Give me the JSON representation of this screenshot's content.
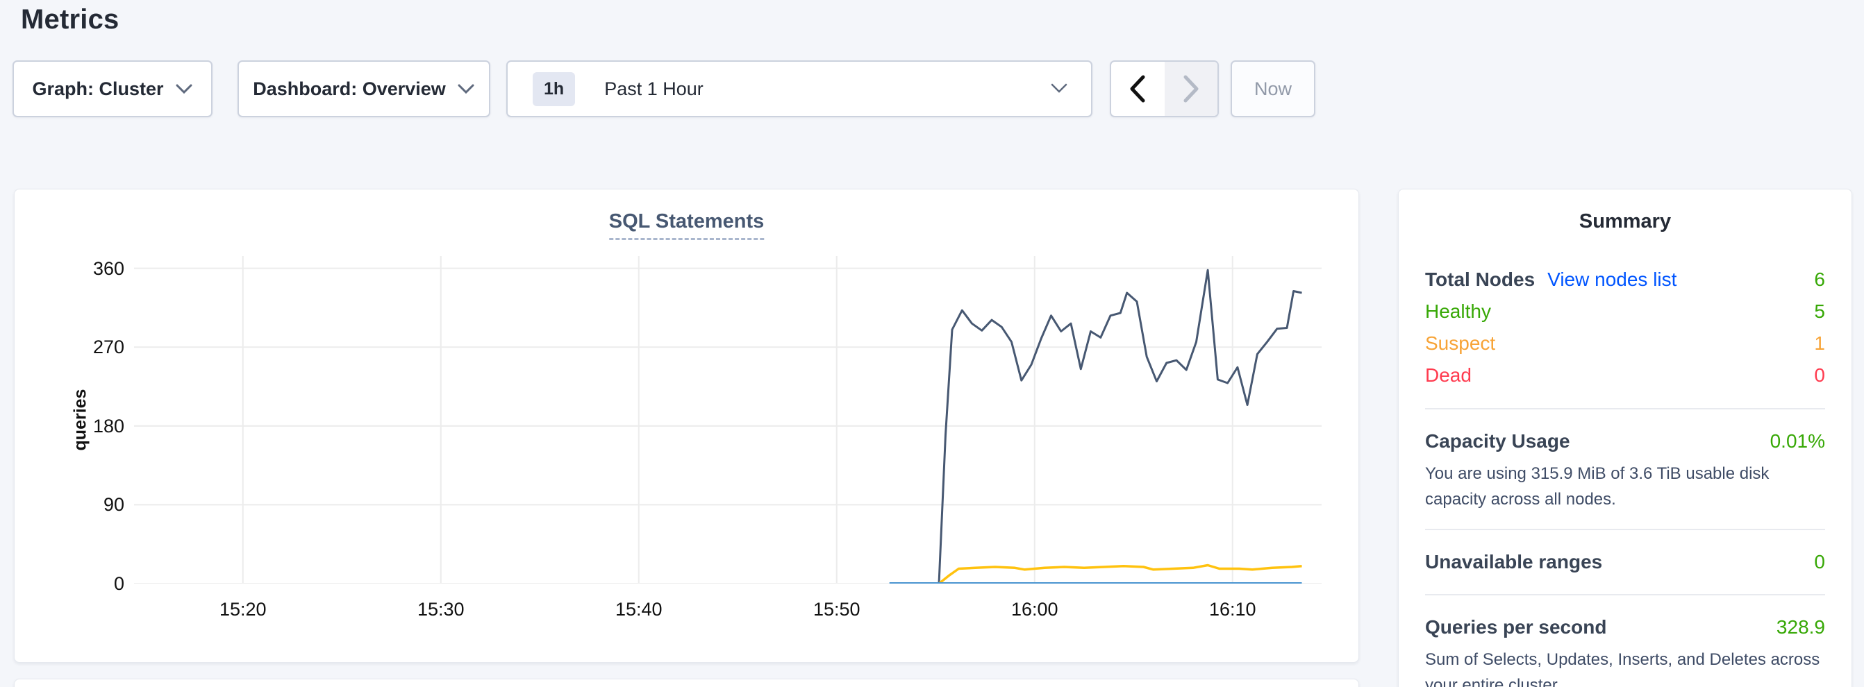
{
  "page": {
    "title": "Metrics"
  },
  "toolbar": {
    "graph_dropdown": "Graph: Cluster",
    "dashboard_dropdown": "Dashboard: Overview",
    "time_badge": "1h",
    "time_label": "Past 1 Hour",
    "now_label": "Now"
  },
  "chart_data": {
    "type": "line",
    "title": "SQL Statements",
    "ylabel": "queries",
    "x_range": [
      "15:14:30",
      "16:14:30"
    ],
    "x_ticks": [
      "15:20",
      "15:30",
      "15:40",
      "15:50",
      "16:00",
      "16:10"
    ],
    "y_ticks": [
      0,
      90,
      180,
      270,
      360
    ],
    "ylim": [
      0,
      374
    ],
    "grid": "on",
    "legend": "none",
    "series": [
      {
        "name": "dark-navy-line",
        "color": "#475872",
        "stroke_width": 3,
        "points": [
          [
            "15:55:10",
            0
          ],
          [
            "15:55:30",
            170
          ],
          [
            "15:55:50",
            290
          ],
          [
            "15:56:20",
            312
          ],
          [
            "15:56:50",
            297
          ],
          [
            "15:57:20",
            289
          ],
          [
            "15:57:50",
            301
          ],
          [
            "15:58:20",
            293
          ],
          [
            "15:58:50",
            276
          ],
          [
            "15:59:20",
            232
          ],
          [
            "15:59:50",
            250
          ],
          [
            "16:00:20",
            280
          ],
          [
            "16:00:50",
            306
          ],
          [
            "16:01:20",
            288
          ],
          [
            "16:01:50",
            297
          ],
          [
            "16:02:20",
            245
          ],
          [
            "16:02:50",
            288
          ],
          [
            "16:03:20",
            281
          ],
          [
            "16:03:50",
            306
          ],
          [
            "16:04:20",
            309
          ],
          [
            "16:04:40",
            332
          ],
          [
            "16:05:10",
            322
          ],
          [
            "16:05:40",
            259
          ],
          [
            "16:06:10",
            231
          ],
          [
            "16:06:40",
            252
          ],
          [
            "16:07:10",
            255
          ],
          [
            "16:07:40",
            244
          ],
          [
            "16:08:10",
            276
          ],
          [
            "16:08:45",
            358
          ],
          [
            "16:09:15",
            233
          ],
          [
            "16:09:45",
            229
          ],
          [
            "16:10:15",
            247
          ],
          [
            "16:10:45",
            204
          ],
          [
            "16:11:15",
            262
          ],
          [
            "16:11:45",
            276
          ],
          [
            "16:12:15",
            291
          ],
          [
            "16:12:45",
            292
          ],
          [
            "16:13:05",
            334
          ],
          [
            "16:13:30",
            332
          ]
        ]
      },
      {
        "name": "yellow-line",
        "color": "#ffc20e",
        "stroke_width": 3.5,
        "points": [
          [
            "15:55:10",
            0
          ],
          [
            "15:55:40",
            9
          ],
          [
            "15:56:10",
            17
          ],
          [
            "15:57:00",
            18
          ],
          [
            "15:58:00",
            19
          ],
          [
            "15:59:00",
            18
          ],
          [
            "15:59:30",
            16
          ],
          [
            "16:00:30",
            18
          ],
          [
            "16:01:30",
            19
          ],
          [
            "16:02:30",
            18
          ],
          [
            "16:03:30",
            19
          ],
          [
            "16:04:30",
            20
          ],
          [
            "16:05:30",
            19
          ],
          [
            "16:06:00",
            16
          ],
          [
            "16:07:00",
            17
          ],
          [
            "16:08:00",
            18
          ],
          [
            "16:08:45",
            21
          ],
          [
            "16:09:20",
            17
          ],
          [
            "16:10:20",
            17
          ],
          [
            "16:11:00",
            16
          ],
          [
            "16:12:00",
            18
          ],
          [
            "16:13:00",
            19
          ],
          [
            "16:13:30",
            20
          ]
        ]
      },
      {
        "name": "blue-line",
        "color": "#4a95d0",
        "stroke_width": 4,
        "points": [
          [
            "15:52:40",
            0
          ],
          [
            "16:13:30",
            0
          ]
        ]
      }
    ]
  },
  "summary": {
    "title": "Summary",
    "node_rows": [
      {
        "label": "Total Nodes",
        "link": "View nodes list",
        "value": "6"
      },
      {
        "label": "Healthy",
        "value": "5"
      },
      {
        "label": "Suspect",
        "value": "1"
      },
      {
        "label": "Dead",
        "value": "0"
      }
    ],
    "sections": [
      {
        "label": "Capacity Usage",
        "value": "0.01%",
        "description": "You are using 315.9 MiB of 3.6 TiB usable disk capacity across all nodes."
      },
      {
        "label": "Unavailable ranges",
        "value": "0",
        "description": ""
      },
      {
        "label": "Queries per second",
        "value": "328.9",
        "description": "Sum of Selects, Updates, Inserts, and Deletes across your entire cluster."
      }
    ]
  },
  "colors": {
    "healthy_green": "#37a806",
    "suspect_orange": "#f7a336",
    "dead_red": "#ff3b4f",
    "link_blue": "#0055ff",
    "accent_navy": "#475872"
  }
}
